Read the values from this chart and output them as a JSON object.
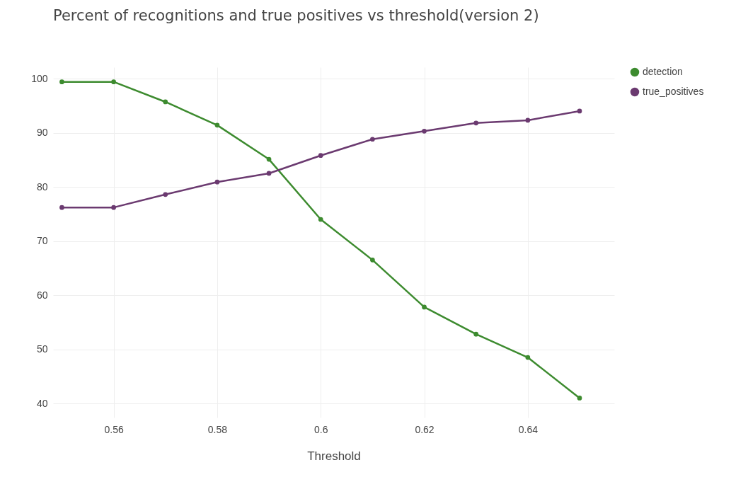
{
  "chart_data": {
    "type": "line",
    "title": "Percent of recognitions and true positives vs threshold(version 2)",
    "xlabel": "Threshold",
    "x": [
      0.55,
      0.56,
      0.57,
      0.58,
      0.59,
      0.6,
      0.61,
      0.62,
      0.63,
      0.64,
      0.65
    ],
    "series": [
      {
        "name": "detection",
        "color": "#3d8b2f",
        "values": [
          99.4,
          99.4,
          95.7,
          91.4,
          85.1,
          74.0,
          66.5,
          57.8,
          52.8,
          48.5,
          41.0
        ]
      },
      {
        "name": "true_positives",
        "color": "#6b3a70",
        "values": [
          76.2,
          76.2,
          78.6,
          80.9,
          82.5,
          85.8,
          88.8,
          90.3,
          91.8,
          92.3,
          94.0
        ]
      }
    ],
    "xlim": [
      0.5483,
      0.6567
    ],
    "xticks": [
      0.56,
      0.58,
      0.6,
      0.62,
      0.64
    ],
    "ylim": [
      37.4,
      102.1
    ],
    "yticks": [
      40,
      50,
      60,
      70,
      80,
      90,
      100
    ],
    "grid": true,
    "legend": "top right",
    "marker": "circle",
    "line_style": "solid"
  }
}
